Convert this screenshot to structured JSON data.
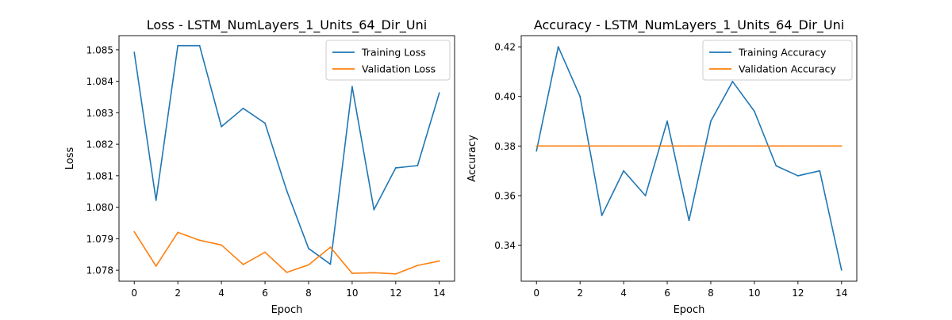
{
  "chart_data": [
    {
      "type": "line",
      "title": "Loss - LSTM_NumLayers_1_Units_64_Dir_Uni",
      "xlabel": "Epoch",
      "ylabel": "Loss",
      "xlim": [
        -0.7,
        14.7
      ],
      "ylim": [
        1.07765,
        1.08545
      ],
      "xticks": [
        0,
        2,
        4,
        6,
        8,
        10,
        12,
        14
      ],
      "yticks": [
        1.078,
        1.079,
        1.08,
        1.081,
        1.082,
        1.083,
        1.084,
        1.085
      ],
      "ytick_labels": [
        "1.078",
        "1.079",
        "1.080",
        "1.081",
        "1.082",
        "1.083",
        "1.084",
        "1.085"
      ],
      "legend_position": "upper right",
      "x": [
        0,
        1,
        2,
        3,
        4,
        5,
        6,
        7,
        8,
        9,
        10,
        11,
        12,
        13,
        14
      ],
      "series": [
        {
          "name": "Training Loss",
          "color": "#1f77b4",
          "values": [
            1.08492,
            1.08022,
            1.08513,
            1.08513,
            1.08256,
            1.08314,
            1.08267,
            1.08052,
            1.07869,
            1.07819,
            1.08383,
            1.07992,
            1.08125,
            1.08132,
            1.08363
          ]
        },
        {
          "name": "Validation Loss",
          "color": "#ff7f0e",
          "values": [
            1.07922,
            1.07813,
            1.0792,
            1.07895,
            1.0788,
            1.07818,
            1.07857,
            1.07793,
            1.07817,
            1.07873,
            1.0779,
            1.07792,
            1.07788,
            1.07815,
            1.07829
          ]
        }
      ]
    },
    {
      "type": "line",
      "title": "Accuracy - LSTM_NumLayers_1_Units_64_Dir_Uni",
      "xlabel": "Epoch",
      "ylabel": "Accuracy",
      "xlim": [
        -0.7,
        14.7
      ],
      "ylim": [
        0.3255,
        0.4245
      ],
      "xticks": [
        0,
        2,
        4,
        6,
        8,
        10,
        12,
        14
      ],
      "yticks": [
        0.34,
        0.36,
        0.38,
        0.4,
        0.42
      ],
      "ytick_labels": [
        "0.34",
        "0.36",
        "0.38",
        "0.40",
        "0.42"
      ],
      "legend_position": "upper right",
      "x": [
        0,
        1,
        2,
        3,
        4,
        5,
        6,
        7,
        8,
        9,
        10,
        11,
        12,
        13,
        14
      ],
      "series": [
        {
          "name": "Training Accuracy",
          "color": "#1f77b4",
          "values": [
            0.378,
            0.42,
            0.4,
            0.352,
            0.37,
            0.36,
            0.39,
            0.35,
            0.39,
            0.406,
            0.394,
            0.372,
            0.368,
            0.37,
            0.33
          ]
        },
        {
          "name": "Validation Accuracy",
          "color": "#ff7f0e",
          "values": [
            0.38,
            0.38,
            0.38,
            0.38,
            0.38,
            0.38,
            0.38,
            0.38,
            0.38,
            0.38,
            0.38,
            0.38,
            0.38,
            0.38,
            0.38
          ]
        }
      ]
    }
  ]
}
